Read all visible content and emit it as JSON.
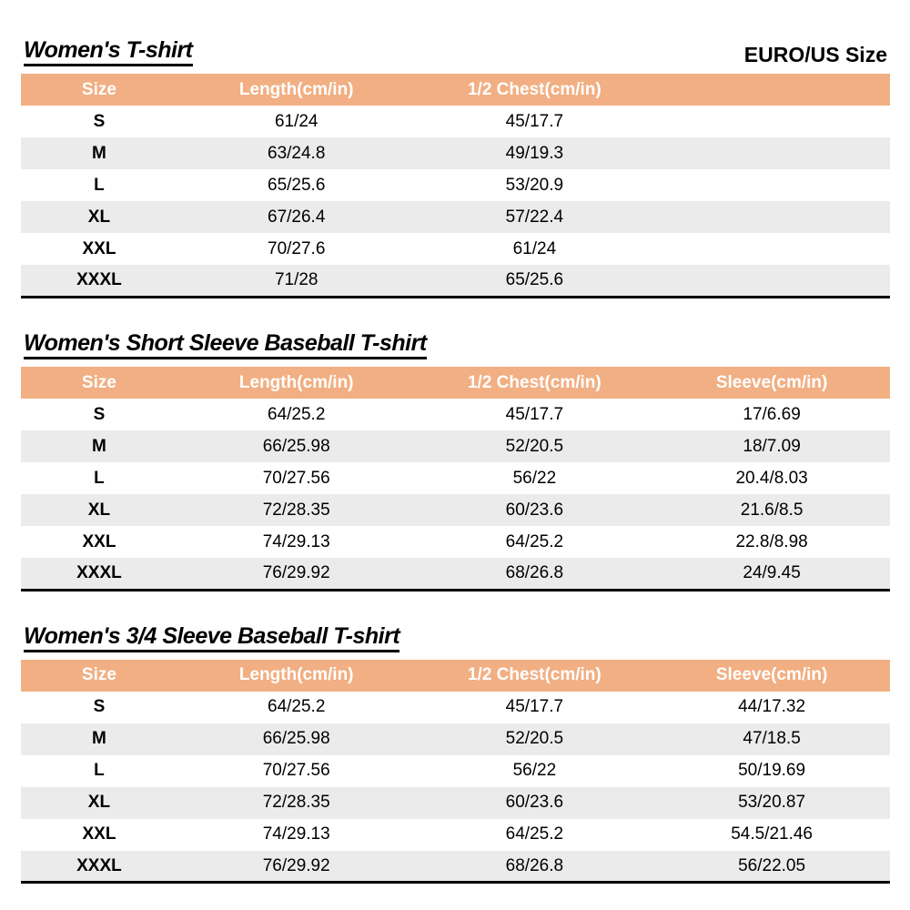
{
  "header": {
    "size_standard": "EURO/US Size"
  },
  "colors": {
    "table_header_bg": "#F1AF83",
    "row_alt_bg": "#EBEBEB",
    "table_border": "#000000"
  },
  "tables": [
    {
      "title": "Women's T-shirt",
      "columns": [
        "Size",
        "Length(cm/in)",
        "1/2 Chest(cm/in)",
        ""
      ],
      "rows": [
        [
          "S",
          "61/24",
          "45/17.7",
          ""
        ],
        [
          "M",
          "63/24.8",
          "49/19.3",
          ""
        ],
        [
          "L",
          "65/25.6",
          "53/20.9",
          ""
        ],
        [
          "XL",
          "67/26.4",
          "57/22.4",
          ""
        ],
        [
          "XXL",
          "70/27.6",
          "61/24",
          ""
        ],
        [
          "XXXL",
          "71/28",
          "65/25.6",
          ""
        ]
      ]
    },
    {
      "title": "Women's Short Sleeve Baseball T-shirt",
      "columns": [
        "Size",
        "Length(cm/in)",
        "1/2 Chest(cm/in)",
        "Sleeve(cm/in)"
      ],
      "rows": [
        [
          "S",
          "64/25.2",
          "45/17.7",
          "17/6.69"
        ],
        [
          "M",
          "66/25.98",
          "52/20.5",
          "18/7.09"
        ],
        [
          "L",
          "70/27.56",
          "56/22",
          "20.4/8.03"
        ],
        [
          "XL",
          "72/28.35",
          "60/23.6",
          "21.6/8.5"
        ],
        [
          "XXL",
          "74/29.13",
          "64/25.2",
          "22.8/8.98"
        ],
        [
          "XXXL",
          "76/29.92",
          "68/26.8",
          "24/9.45"
        ]
      ]
    },
    {
      "title": "Women's 3/4 Sleeve Baseball T-shirt",
      "columns": [
        "Size",
        "Length(cm/in)",
        "1/2 Chest(cm/in)",
        "Sleeve(cm/in)"
      ],
      "rows": [
        [
          "S",
          "64/25.2",
          "45/17.7",
          "44/17.32"
        ],
        [
          "M",
          "66/25.98",
          "52/20.5",
          "47/18.5"
        ],
        [
          "L",
          "70/27.56",
          "56/22",
          "50/19.69"
        ],
        [
          "XL",
          "72/28.35",
          "60/23.6",
          "53/20.87"
        ],
        [
          "XXL",
          "74/29.13",
          "64/25.2",
          "54.5/21.46"
        ],
        [
          "XXXL",
          "76/29.92",
          "68/26.8",
          "56/22.05"
        ]
      ]
    }
  ]
}
